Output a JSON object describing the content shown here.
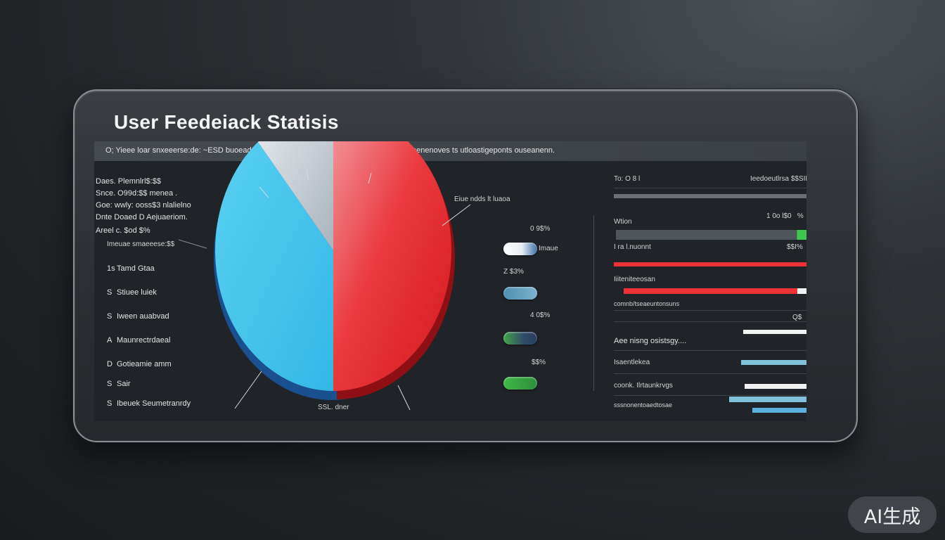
{
  "title": "User Feedeiack Statisis",
  "subtitle": "O; Yieee loar snxeeerse:de: ~ESD buoead  d  esesinee  ~eeeenonesunentosne gmis ter eesenenoves ts utloastigeponts ouseanenn.",
  "left_header": [
    "Daes. Plemnlrl$:$$",
    "Snce. O99d:$$ menea .",
    "Goe: wwly: ooss$3 nlalielno",
    "Dnte  Doaed D  Aejuaeriom.",
    "Areel  c. $od $%"
  ],
  "left_caption": "Imeuae smaeeese:$$",
  "legend_items": [
    {
      "num": "1s",
      "label": "Tamd  Gtaa"
    },
    {
      "num": "S",
      "label": "Stiuee luiek"
    },
    {
      "num": "S",
      "label": "Iween auabvad"
    },
    {
      "num": "A",
      "label": "Maunrectrdaeal"
    },
    {
      "num": "D",
      "label": "Gotieamie  amm"
    },
    {
      "num": "S",
      "label": "Sair"
    },
    {
      "num": "S",
      "label": "Ibeuek  Seumetranrdy"
    }
  ],
  "pie_callout_top_right": "Eiue ndds  lt  luaoa",
  "pie_callout_bottom": "SSL. dner",
  "chart_data": {
    "type": "pie",
    "slices": [
      {
        "value": 50,
        "color": "#e8262a"
      },
      {
        "value": 39,
        "color": "#42c3ea"
      },
      {
        "value": 11,
        "color": "#c9d0d7"
      }
    ]
  },
  "mid_items": [
    {
      "value": "0 9$%",
      "label": "Imaue",
      "color_left": "#ffffff",
      "color_right": "#3b6fa8"
    },
    {
      "value": "Z $3%",
      "label": "",
      "color_left": "#4f8fb0",
      "color_right": "#7db1cf"
    },
    {
      "value": "4 0$%",
      "label": "",
      "color_left": "#44a447",
      "color_right": "#2a3d5c"
    },
    {
      "value": "$$%",
      "label": "",
      "color_left": "#3fb84a",
      "color_right": "#2d8f3a"
    }
  ],
  "right_top": {
    "left": "To: O  8  l",
    "right": "Ieedoeutlrsa $$SIM"
  },
  "right_rows": [
    {
      "label": "",
      "value": "1 0o  l$0   %"
    },
    {
      "label": "Wtion",
      "value": ""
    },
    {
      "label": "I ra l.nuonnt",
      "value": "$$I%"
    },
    {
      "label": "Iiiteniteeosan",
      "value": ""
    },
    {
      "label": "comnb/tseaeuntonsuns",
      "value": ""
    },
    {
      "label": "",
      "value": "Q$"
    },
    {
      "label": "Aee  nisng  osistsgy....",
      "value": ""
    },
    {
      "label": "Isaentlekea",
      "value": ""
    },
    {
      "label": "coonk. Ilrtaunkrvgs",
      "value": ""
    },
    {
      "label": "sssnonentoaedtosae",
      "value": ""
    }
  ],
  "right_bars": [
    {
      "value": 1.0,
      "color": "#6a6f75"
    },
    {
      "value": 0.99,
      "color": "#4f555b",
      "tip": "#3fc84d"
    },
    {
      "value": 1.0,
      "color": "#ef3235"
    },
    {
      "value": 0.95,
      "color": "#ef3235",
      "tip": "#f2f2f2"
    },
    {
      "value": 0.33,
      "color": "#f2f2f2"
    },
    {
      "value": 0.34,
      "color": "#7fc0da"
    },
    {
      "value": 0.32,
      "color": "#f2f2f2"
    },
    {
      "value": 0.4,
      "color": "#7fc0da"
    },
    {
      "value": 0.28,
      "color": "#5bb2e0"
    }
  ],
  "watermark": "AI生成"
}
